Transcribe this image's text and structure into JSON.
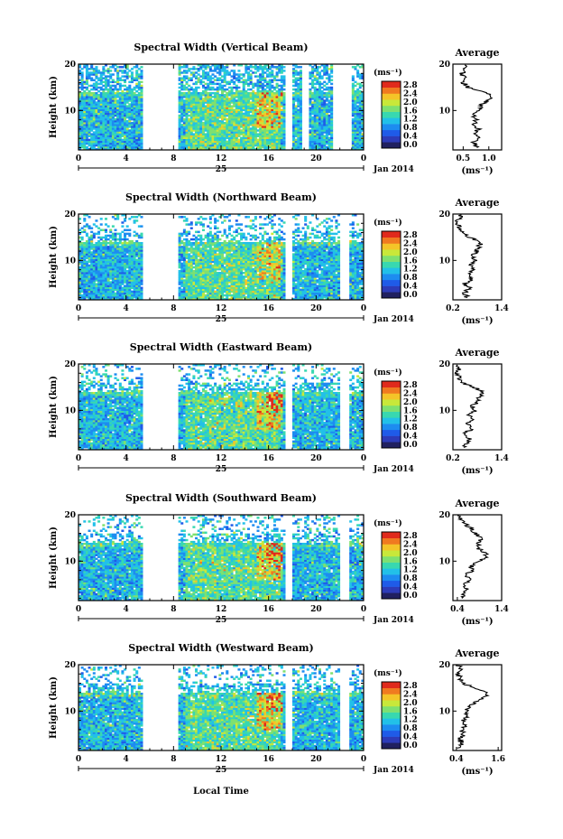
{
  "figure": {
    "x_axis_label": "Local Time",
    "colorbar_unit": "(ms⁻¹)",
    "colorbar_ticks": [
      "0.0",
      "0.4",
      "0.8",
      "1.2",
      "1.6",
      "2.0",
      "2.4",
      "2.8"
    ],
    "colormap": [
      "#202060",
      "#2d3bb8",
      "#1f5be8",
      "#1d8cf0",
      "#22c0e8",
      "#38d8b0",
      "#7ee070",
      "#c8e83a",
      "#f4c428",
      "#f07a20",
      "#e02a1c"
    ],
    "day_label": "25",
    "month_label": "Jan 2014",
    "avg_title": "Average",
    "avg_unit": "(ms⁻¹)",
    "y_axis_label": "Height (km)"
  },
  "chart_data": [
    {
      "type": "heatmap",
      "title": "Spectral Width (Vertical Beam)",
      "ylabel": "Height (km)",
      "xlabel": "Local Time",
      "xlim": [
        0,
        24
      ],
      "ylim": [
        1.5,
        20
      ],
      "xticks": [
        "0",
        "4",
        "8",
        "12",
        "16",
        "20",
        "0"
      ],
      "yticks": [
        "10",
        "20"
      ],
      "gaps_hours": [
        [
          5.4,
          8.3
        ],
        [
          17.4,
          17.9
        ],
        [
          18.9,
          19.3
        ],
        [
          21.5,
          23.0
        ]
      ],
      "profile": {
        "title": "Average",
        "xlabel": "(ms⁻¹)",
        "ylabel": "Height (km)",
        "xlim": [
          0.3,
          1.25
        ],
        "xticks": [
          "0.5",
          "1.0"
        ],
        "ylim": [
          1.5,
          20
        ],
        "yticks": [
          "10",
          "20"
        ],
        "height_km": [
          2,
          3,
          4,
          5,
          6,
          7,
          8,
          9,
          10,
          11,
          12,
          13,
          14,
          15,
          16,
          17,
          18,
          19,
          20
        ],
        "width_ms": [
          0.8,
          0.7,
          0.78,
          0.72,
          0.8,
          0.7,
          0.75,
          0.7,
          0.78,
          0.85,
          0.95,
          1.05,
          0.9,
          0.6,
          0.5,
          0.52,
          0.48,
          0.55,
          0.5
        ]
      }
    },
    {
      "type": "heatmap",
      "title": "Spectral Width (Northward Beam)",
      "ylabel": "Height (km)",
      "xlabel": "Local Time",
      "xlim": [
        0,
        24
      ],
      "ylim": [
        1.5,
        20
      ],
      "xticks": [
        "0",
        "4",
        "8",
        "12",
        "16",
        "20",
        "0"
      ],
      "yticks": [
        "10",
        "20"
      ],
      "gaps_hours": [
        [
          5.4,
          8.3
        ],
        [
          17.4,
          17.9
        ],
        [
          22.0,
          22.8
        ]
      ],
      "profile": {
        "title": "Average",
        "xlabel": "(ms⁻¹)",
        "ylabel": "Height (km)",
        "xlim": [
          0.2,
          1.4
        ],
        "xticks": [
          "0.2",
          "1.4"
        ],
        "ylim": [
          1.5,
          20
        ],
        "yticks": [
          "10",
          "20"
        ],
        "height_km": [
          2,
          3,
          4,
          5,
          6,
          7,
          8,
          9,
          10,
          11,
          12,
          13,
          14,
          15,
          16,
          17,
          18,
          19,
          20
        ],
        "width_ms": [
          0.55,
          0.5,
          0.6,
          0.5,
          0.65,
          0.6,
          0.7,
          0.65,
          0.75,
          0.7,
          0.8,
          0.85,
          0.9,
          0.6,
          0.45,
          0.35,
          0.3,
          0.35,
          0.4
        ]
      }
    },
    {
      "type": "heatmap",
      "title": "Spectral Width (Eastward Beam)",
      "ylabel": "Height (km)",
      "xlabel": "Local Time",
      "xlim": [
        0,
        24
      ],
      "ylim": [
        1.5,
        20
      ],
      "xticks": [
        "0",
        "4",
        "8",
        "12",
        "16",
        "20",
        "0"
      ],
      "yticks": [
        "10",
        "20"
      ],
      "gaps_hours": [
        [
          5.4,
          8.3
        ],
        [
          17.4,
          17.9
        ],
        [
          22.0,
          22.8
        ]
      ],
      "profile": {
        "title": "Average",
        "xlabel": "(ms⁻¹)",
        "ylabel": "Height (km)",
        "xlim": [
          0.2,
          1.4
        ],
        "xticks": [
          "0.2",
          "1.4"
        ],
        "ylim": [
          1.5,
          20
        ],
        "yticks": [
          "10",
          "20"
        ],
        "height_km": [
          2,
          3,
          4,
          5,
          6,
          7,
          8,
          9,
          10,
          11,
          12,
          13,
          14,
          15,
          16,
          17,
          18,
          19,
          20
        ],
        "width_ms": [
          0.5,
          0.55,
          0.6,
          0.5,
          0.65,
          0.55,
          0.7,
          0.6,
          0.75,
          0.7,
          0.8,
          0.85,
          0.95,
          0.7,
          0.45,
          0.35,
          0.3,
          0.35,
          0.3
        ]
      }
    },
    {
      "type": "heatmap",
      "title": "Spectral Width (Southward Beam)",
      "ylabel": "Height (km)",
      "xlabel": "Local Time",
      "xlim": [
        0,
        24
      ],
      "ylim": [
        1.5,
        20
      ],
      "xticks": [
        "0",
        "4",
        "8",
        "12",
        "16",
        "20",
        "0"
      ],
      "yticks": [
        "10",
        "20"
      ],
      "gaps_hours": [
        [
          5.4,
          8.3
        ],
        [
          17.4,
          17.9
        ],
        [
          22.0,
          22.8
        ]
      ],
      "profile": {
        "title": "Average",
        "xlabel": "(ms⁻¹)",
        "ylabel": "Height (km)",
        "xlim": [
          0.3,
          1.4
        ],
        "xticks": [
          "0.4",
          "1.4"
        ],
        "ylim": [
          1.5,
          20
        ],
        "yticks": [
          "10",
          "20"
        ],
        "height_km": [
          2,
          3,
          4,
          5,
          6,
          7,
          8,
          9,
          10,
          11,
          12,
          13,
          14,
          15,
          16,
          17,
          18,
          19,
          20
        ],
        "width_ms": [
          0.55,
          0.5,
          0.6,
          0.55,
          0.65,
          0.6,
          0.75,
          0.7,
          0.9,
          1.05,
          1.0,
          0.85,
          0.9,
          0.95,
          0.8,
          0.7,
          0.6,
          0.5,
          0.45
        ]
      }
    },
    {
      "type": "heatmap",
      "title": "Spectral Width (Westward Beam)",
      "ylabel": "Height (km)",
      "xlabel": "Local Time",
      "xlim": [
        0,
        24
      ],
      "ylim": [
        1.5,
        20
      ],
      "xticks": [
        "0",
        "4",
        "8",
        "12",
        "16",
        "20",
        "0"
      ],
      "yticks": [
        "10",
        "20"
      ],
      "gaps_hours": [
        [
          5.4,
          8.3
        ],
        [
          17.4,
          17.9
        ],
        [
          22.0,
          22.8
        ]
      ],
      "profile": {
        "title": "Average",
        "xlabel": "(ms⁻¹)",
        "ylabel": "Height (km)",
        "xlim": [
          0.3,
          1.7
        ],
        "xticks": [
          "0.4",
          "1.6"
        ],
        "ylim": [
          1.5,
          20
        ],
        "yticks": [
          "10",
          "20"
        ],
        "height_km": [
          2,
          3,
          4,
          5,
          6,
          7,
          8,
          9,
          10,
          11,
          12,
          13,
          14,
          15,
          16,
          17,
          18,
          19,
          20
        ],
        "width_ms": [
          0.5,
          0.55,
          0.5,
          0.6,
          0.55,
          0.65,
          0.6,
          0.7,
          0.65,
          0.75,
          0.95,
          1.2,
          1.3,
          0.9,
          0.6,
          0.5,
          0.45,
          0.5,
          0.45
        ]
      }
    }
  ]
}
